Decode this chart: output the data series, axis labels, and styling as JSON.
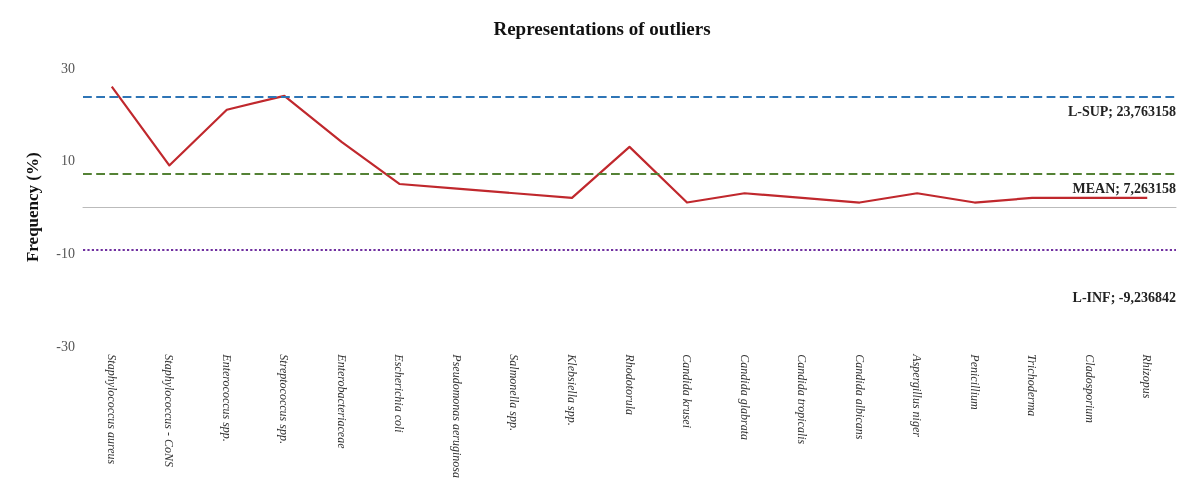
{
  "chart_data": {
    "type": "line",
    "title": "Representations of outliers",
    "ylabel": "Frequency (%)",
    "categories": [
      "Staphylococcus aureus",
      "Staphylococcus - CoNS",
      "Enterococcus spp.",
      "Streptococcus spp.",
      "Enterobacteriaceae",
      "Escherichia coli",
      "Pseudomonas aeruginosa",
      "Salmonella spp.",
      "Klebsiella spp.",
      "Rhodotorula",
      "Candida krusei",
      "Candida glabrata",
      "Candida tropicalis",
      "Candida albicans",
      "Aspergillus niger",
      "Penicillium",
      "Trichoderma",
      "Cladosporium",
      "Rhizopus"
    ],
    "series": [
      {
        "color": "#c0282d",
        "values": [
          26,
          9,
          21,
          24,
          14,
          5,
          4,
          3,
          2,
          13,
          1,
          3,
          2,
          1,
          3,
          1,
          2,
          2,
          2
        ]
      }
    ],
    "ylim": [
      -30,
      30
    ],
    "yticks": [
      -30,
      -10,
      10,
      30
    ],
    "grid": false,
    "marker": "none",
    "line_style": "solid",
    "ref_lines": [
      {
        "axis": "y",
        "value": 23.763158,
        "label": "L-SUP; 23,763158",
        "color": "#2e75b6",
        "line_style": "dashed"
      },
      {
        "axis": "y",
        "value": 7.263158,
        "label": "MEAN; 7,263158",
        "color": "#548235",
        "line_style": "dashed"
      },
      {
        "axis": "y",
        "value": -9.236842,
        "label": "L-INF; -9,236842",
        "color": "#7030a0",
        "line_style": "dotted"
      }
    ]
  }
}
